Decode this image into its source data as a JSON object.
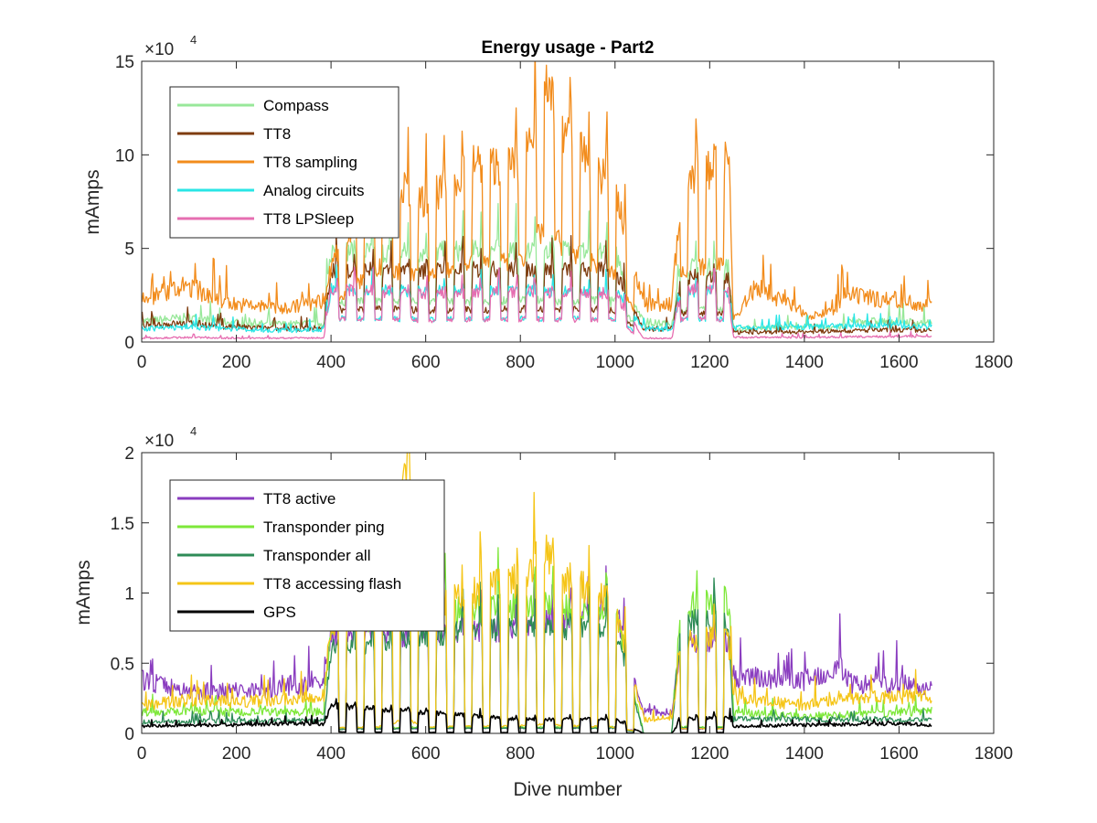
{
  "figure": {
    "background": "#ffffff"
  },
  "chart_data": [
    {
      "type": "line",
      "title": "Energy usage - Part2",
      "xlabel": "",
      "ylabel": "mAmps",
      "y_exponent_base": "×10",
      "y_exponent_power": "4",
      "xlim": [
        0,
        1800
      ],
      "ylim": [
        0,
        150000
      ],
      "xticks": [
        0,
        200,
        400,
        600,
        800,
        1000,
        1200,
        1400,
        1600,
        1800
      ],
      "yticks": [
        0,
        50000,
        100000,
        150000
      ],
      "xtick_labels": [
        "0",
        "200",
        "400",
        "600",
        "800",
        "1000",
        "1200",
        "1400",
        "1600",
        "1800"
      ],
      "ytick_labels": [
        "0",
        "5",
        "10",
        "15"
      ],
      "legend_position": "top-left",
      "dive_range": [
        1,
        1670
      ],
      "series": [
        {
          "name": "Compass",
          "color": "#98e89a",
          "values": [
            [
              0,
              11000
            ],
            [
              100,
              13000
            ],
            [
              200,
              10000
            ],
            [
              300,
              9500
            ],
            [
              385,
              10000
            ],
            [
              400,
              49000
            ],
            [
              500,
              48000
            ],
            [
              600,
              48000
            ],
            [
              800,
              50000
            ],
            [
              1000,
              48000
            ],
            [
              1060,
              10000
            ],
            [
              1120,
              10000
            ],
            [
              1140,
              40000
            ],
            [
              1240,
              40000
            ],
            [
              1250,
              7000
            ],
            [
              1400,
              8000
            ],
            [
              1480,
              8000
            ],
            [
              1500,
              11000
            ],
            [
              1600,
              11000
            ],
            [
              1670,
              10000
            ]
          ]
        },
        {
          "name": "TT8",
          "color": "#7f3c0f",
          "values": [
            [
              0,
              9000
            ],
            [
              100,
              10000
            ],
            [
              200,
              8000
            ],
            [
              300,
              7000
            ],
            [
              385,
              7500
            ],
            [
              400,
              39000
            ],
            [
              600,
              38000
            ],
            [
              800,
              39000
            ],
            [
              1000,
              38000
            ],
            [
              1060,
              7000
            ],
            [
              1120,
              7000
            ],
            [
              1140,
              35000
            ],
            [
              1240,
              34000
            ],
            [
              1250,
              5000
            ],
            [
              1400,
              5500
            ],
            [
              1600,
              6500
            ],
            [
              1670,
              6000
            ]
          ]
        },
        {
          "name": "TT8 sampling",
          "color": "#f28c1c",
          "values": [
            [
              0,
              22000
            ],
            [
              50,
              26000
            ],
            [
              100,
              30000
            ],
            [
              150,
              24000
            ],
            [
              200,
              20000
            ],
            [
              300,
              18000
            ],
            [
              385,
              22000
            ],
            [
              400,
              40000
            ],
            [
              500,
              90000
            ],
            [
              600,
              75000
            ],
            [
              700,
              95000
            ],
            [
              800,
              95000
            ],
            [
              850,
              135000
            ],
            [
              900,
              110000
            ],
            [
              1000,
              80000
            ],
            [
              1060,
              20000
            ],
            [
              1120,
              20000
            ],
            [
              1140,
              80000
            ],
            [
              1240,
              100000
            ],
            [
              1250,
              12000
            ],
            [
              1300,
              30000
            ],
            [
              1400,
              15000
            ],
            [
              1460,
              15000
            ],
            [
              1480,
              25000
            ],
            [
              1600,
              22000
            ],
            [
              1670,
              20000
            ]
          ]
        },
        {
          "name": "Analog circuits",
          "color": "#29e6e6",
          "values": [
            [
              0,
              7000
            ],
            [
              100,
              8000
            ],
            [
              200,
              7000
            ],
            [
              300,
              6000
            ],
            [
              385,
              7000
            ],
            [
              400,
              28000
            ],
            [
              600,
              27000
            ],
            [
              800,
              28000
            ],
            [
              1000,
              27000
            ],
            [
              1060,
              7000
            ],
            [
              1120,
              7000
            ],
            [
              1140,
              27000
            ],
            [
              1240,
              27000
            ],
            [
              1250,
              7500
            ],
            [
              1400,
              8000
            ],
            [
              1600,
              9000
            ],
            [
              1670,
              8000
            ]
          ]
        },
        {
          "name": "TT8 LPSleep",
          "color": "#e66eb1",
          "values": [
            [
              0,
              2000
            ],
            [
              100,
              2500
            ],
            [
              200,
              2000
            ],
            [
              385,
              2200
            ],
            [
              400,
              28000
            ],
            [
              600,
              26000
            ],
            [
              800,
              27000
            ],
            [
              1000,
              26000
            ],
            [
              1060,
              2000
            ],
            [
              1120,
              2000
            ],
            [
              1140,
              28000
            ],
            [
              1240,
              27000
            ],
            [
              1250,
              2500
            ],
            [
              1400,
              2500
            ],
            [
              1600,
              3000
            ],
            [
              1670,
              3000
            ]
          ]
        }
      ]
    },
    {
      "type": "line",
      "title": "",
      "xlabel": "Dive number",
      "ylabel": "mAmps",
      "y_exponent_base": "×10",
      "y_exponent_power": "4",
      "xlim": [
        0,
        1800
      ],
      "ylim": [
        0,
        20000
      ],
      "xticks": [
        0,
        200,
        400,
        600,
        800,
        1000,
        1200,
        1400,
        1600,
        1800
      ],
      "yticks": [
        0,
        5000,
        10000,
        15000,
        20000
      ],
      "xtick_labels": [
        "0",
        "200",
        "400",
        "600",
        "800",
        "1000",
        "1200",
        "1400",
        "1600",
        "1800"
      ],
      "ytick_labels": [
        "0",
        "0.5",
        "1",
        "1.5",
        "2"
      ],
      "legend_position": "top-left",
      "dive_range": [
        1,
        1670
      ],
      "series": [
        {
          "name": "TT8 active",
          "color": "#8a3dbf",
          "values": [
            [
              0,
              3800
            ],
            [
              100,
              3000
            ],
            [
              200,
              3100
            ],
            [
              300,
              3200
            ],
            [
              385,
              3500
            ],
            [
              400,
              7000
            ],
            [
              600,
              7000
            ],
            [
              800,
              7500
            ],
            [
              1000,
              9000
            ],
            [
              1060,
              1500
            ],
            [
              1120,
              1500
            ],
            [
              1140,
              6500
            ],
            [
              1240,
              6500
            ],
            [
              1250,
              4000
            ],
            [
              1400,
              3800
            ],
            [
              1480,
              4800
            ],
            [
              1500,
              3500
            ],
            [
              1600,
              3500
            ],
            [
              1670,
              3400
            ]
          ]
        },
        {
          "name": "Transponder ping",
          "color": "#7ee83a",
          "values": [
            [
              0,
              1500
            ],
            [
              100,
              1600
            ],
            [
              200,
              1500
            ],
            [
              300,
              1500
            ],
            [
              385,
              1500
            ],
            [
              400,
              8000
            ],
            [
              600,
              8500
            ],
            [
              800,
              9000
            ],
            [
              1000,
              9000
            ],
            [
              1060,
              0
            ],
            [
              1120,
              0
            ],
            [
              1140,
              9000
            ],
            [
              1240,
              9500
            ],
            [
              1250,
              1500
            ],
            [
              1400,
              1200
            ],
            [
              1600,
              1500
            ],
            [
              1670,
              1600
            ]
          ]
        },
        {
          "name": "Transponder all",
          "color": "#2e8b57",
          "values": [
            [
              0,
              800
            ],
            [
              200,
              900
            ],
            [
              385,
              900
            ],
            [
              400,
              6000
            ],
            [
              600,
              7000
            ],
            [
              800,
              7500
            ],
            [
              1000,
              7500
            ],
            [
              1060,
              0
            ],
            [
              1120,
              0
            ],
            [
              1140,
              8000
            ],
            [
              1240,
              8000
            ],
            [
              1250,
              1000
            ],
            [
              1670,
              1000
            ]
          ]
        },
        {
          "name": "TT8 accessing flash",
          "color": "#f5c518",
          "values": [
            [
              0,
              2000
            ],
            [
              100,
              2400
            ],
            [
              200,
              2200
            ],
            [
              300,
              2500
            ],
            [
              385,
              2600
            ],
            [
              400,
              7500
            ],
            [
              500,
              9000
            ],
            [
              560,
              20000
            ],
            [
              600,
              9000
            ],
            [
              800,
              11000
            ],
            [
              850,
              13000
            ],
            [
              900,
              11000
            ],
            [
              1000,
              9000
            ],
            [
              1060,
              1000
            ],
            [
              1120,
              1000
            ],
            [
              1140,
              6500
            ],
            [
              1240,
              7000
            ],
            [
              1250,
              2500
            ],
            [
              1400,
              2000
            ],
            [
              1480,
              2600
            ],
            [
              1600,
              2600
            ],
            [
              1670,
              2600
            ]
          ]
        },
        {
          "name": "GPS",
          "color": "#000000",
          "values": [
            [
              0,
              500
            ],
            [
              100,
              600
            ],
            [
              200,
              600
            ],
            [
              300,
              700
            ],
            [
              385,
              700
            ],
            [
              400,
              2000
            ],
            [
              600,
              1500
            ],
            [
              800,
              1000
            ],
            [
              1000,
              1000
            ],
            [
              1060,
              0
            ],
            [
              1120,
              0
            ],
            [
              1140,
              1000
            ],
            [
              1240,
              1200
            ],
            [
              1250,
              500
            ],
            [
              1400,
              600
            ],
            [
              1600,
              700
            ],
            [
              1670,
              600
            ]
          ]
        }
      ]
    }
  ]
}
